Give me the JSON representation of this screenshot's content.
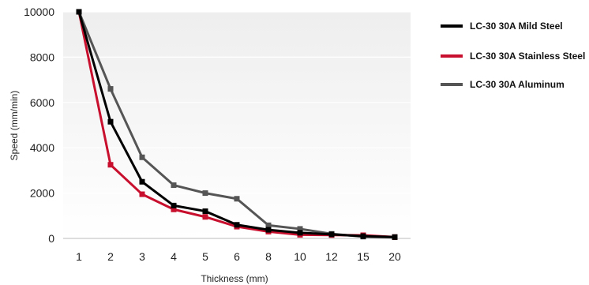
{
  "chart_data": {
    "type": "line",
    "title": "",
    "xlabel": "Thickness (mm)",
    "ylabel": "Speed (mm/min)",
    "categories": [
      "1",
      "2",
      "3",
      "4",
      "5",
      "6",
      "8",
      "10",
      "12",
      "15",
      "20"
    ],
    "ylim": [
      0,
      10000
    ],
    "yticks": [
      "0",
      "2000",
      "4000",
      "6000",
      "8000",
      "10000"
    ],
    "grid": true,
    "legend_position": "right",
    "series": [
      {
        "name": "LC-30 30A Mild Steel",
        "color": "#000000",
        "values": [
          10000,
          5150,
          2500,
          1450,
          1200,
          600,
          380,
          250,
          180,
          100,
          60
        ]
      },
      {
        "name": "LC-30 30A Stainless Steel",
        "color": "#c8102e",
        "values": [
          10000,
          3250,
          1950,
          1280,
          950,
          520,
          300,
          160,
          150,
          140,
          60
        ]
      },
      {
        "name": "LC-30 30A Aluminum",
        "color": "#555555",
        "values": [
          10000,
          6600,
          3580,
          2350,
          2000,
          1750,
          580,
          420,
          200,
          80,
          50
        ]
      }
    ]
  }
}
